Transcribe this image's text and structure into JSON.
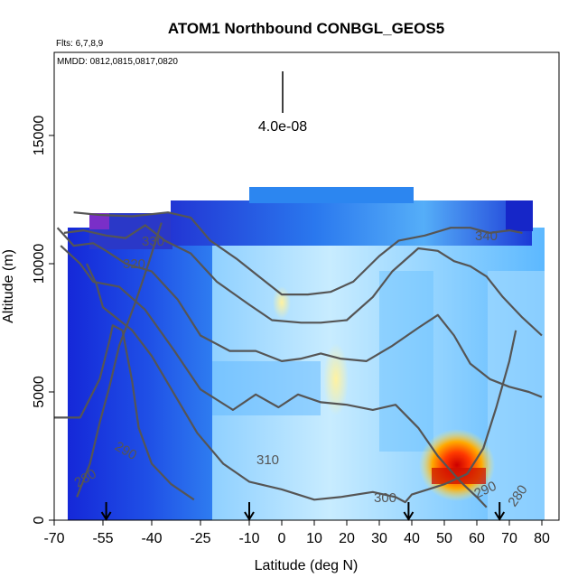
{
  "chart_data": {
    "type": "heatmap",
    "title": "ATOM1 Northbound CONBGL_GEOS5",
    "flights_label": "Flts: 6,7,8,9",
    "dates_label": "MMDD: 0812,0815,0817,0820",
    "xlabel": "Latitude (deg N)",
    "ylabel": "Altitude (m)",
    "xlim": [
      -70,
      80
    ],
    "ylim": [
      0,
      17000
    ],
    "x_ticks": [
      -70,
      -55,
      -40,
      -25,
      -10,
      0,
      10,
      20,
      30,
      40,
      50,
      60,
      70,
      80
    ],
    "x_tick_labels": [
      "-70",
      "-55",
      "-40",
      "-25",
      "-10",
      "0",
      "10",
      "20",
      "30",
      "40",
      "50",
      "60",
      "70",
      "80"
    ],
    "y_ticks": [
      0,
      5000,
      10000,
      15000
    ],
    "y_tick_labels": [
      "0",
      "5000",
      "10000",
      "15000"
    ],
    "scale_label": "4.0e-08",
    "contour_labels": [
      "330",
      "320",
      "340",
      "310",
      "300",
      "290",
      "280",
      "290",
      "280"
    ],
    "arrow_latitudes": [
      -54,
      -10,
      39,
      67
    ],
    "theta_contours": [
      {
        "level": 280,
        "points": [
          [
            -63,
            900
          ],
          [
            -59,
            2200
          ],
          [
            -56,
            3800
          ],
          [
            -53,
            5200
          ],
          [
            -50,
            6800
          ],
          [
            -45,
            8500
          ],
          [
            -41,
            10000
          ],
          [
            -37,
            11600
          ]
        ]
      },
      {
        "level": 290,
        "points": [
          [
            -70,
            4000
          ],
          [
            -62,
            4000
          ],
          [
            -56,
            5500
          ],
          [
            -53,
            7000
          ],
          [
            -52,
            7600
          ],
          [
            -49,
            7400
          ],
          [
            -46,
            5400
          ],
          [
            -44,
            3600
          ],
          [
            -40,
            2200
          ],
          [
            -34,
            1400
          ],
          [
            -27,
            800
          ]
        ]
      },
      {
        "level": 300,
        "points": [
          [
            -60,
            10000
          ],
          [
            -57,
            9200
          ],
          [
            -55,
            8300
          ],
          [
            -46,
            7400
          ],
          [
            -40,
            6400
          ],
          [
            -33,
            4900
          ],
          [
            -26,
            3400
          ],
          [
            -18,
            2200
          ],
          [
            -10,
            1500
          ],
          [
            0,
            1200
          ],
          [
            10,
            800
          ],
          [
            18,
            900
          ],
          [
            28,
            1100
          ],
          [
            35,
            900
          ],
          [
            38,
            700
          ],
          [
            40,
            1000
          ],
          [
            45,
            1200
          ],
          [
            50,
            1400
          ],
          [
            57,
            1800
          ],
          [
            62,
            2800
          ],
          [
            66,
            4400
          ],
          [
            70,
            6200
          ],
          [
            72,
            7400
          ]
        ]
      },
      {
        "level": 310,
        "points": [
          [
            -68,
            10700
          ],
          [
            -62,
            10000
          ],
          [
            -58,
            9300
          ],
          [
            -50,
            9100
          ],
          [
            -42,
            8200
          ],
          [
            -33,
            6600
          ],
          [
            -25,
            5100
          ],
          [
            -15,
            4300
          ],
          [
            -8,
            4900
          ],
          [
            -1,
            4400
          ],
          [
            5,
            4900
          ],
          [
            12,
            4600
          ],
          [
            20,
            4500
          ],
          [
            28,
            4300
          ],
          [
            35,
            4500
          ],
          [
            42,
            3600
          ],
          [
            48,
            2500
          ],
          [
            55,
            1500
          ],
          [
            60,
            900
          ],
          [
            63,
            500
          ]
        ]
      },
      {
        "level": 320,
        "points": [
          [
            -69,
            11400
          ],
          [
            -64,
            10700
          ],
          [
            -58,
            10800
          ],
          [
            -54,
            10500
          ],
          [
            -48,
            10000
          ],
          [
            -40,
            9700
          ],
          [
            -32,
            8600
          ],
          [
            -25,
            7200
          ],
          [
            -16,
            6600
          ],
          [
            -8,
            6600
          ],
          [
            0,
            6200
          ],
          [
            6,
            6300
          ],
          [
            12,
            6500
          ],
          [
            18,
            6300
          ],
          [
            26,
            6200
          ],
          [
            34,
            6800
          ],
          [
            42,
            7500
          ],
          [
            48,
            8000
          ],
          [
            53,
            7200
          ],
          [
            58,
            6100
          ],
          [
            64,
            5500
          ],
          [
            70,
            5200
          ],
          [
            76,
            5000
          ],
          [
            80,
            4800
          ]
        ]
      },
      {
        "level": 330,
        "points": [
          [
            -67,
            11200
          ],
          [
            -61,
            11300
          ],
          [
            -54,
            11100
          ],
          [
            -48,
            11000
          ],
          [
            -42,
            11500
          ],
          [
            -36,
            10900
          ],
          [
            -28,
            10400
          ],
          [
            -20,
            9300
          ],
          [
            -10,
            8400
          ],
          [
            -3,
            7800
          ],
          [
            6,
            7700
          ],
          [
            12,
            7700
          ],
          [
            20,
            7800
          ],
          [
            28,
            8700
          ],
          [
            34,
            9700
          ],
          [
            42,
            10600
          ],
          [
            48,
            10500
          ],
          [
            53,
            10100
          ],
          [
            58,
            9900
          ],
          [
            63,
            9500
          ],
          [
            68,
            8700
          ],
          [
            74,
            7900
          ],
          [
            80,
            7200
          ]
        ]
      },
      {
        "level": 340,
        "points": [
          [
            -64,
            12000
          ],
          [
            -56,
            11900
          ],
          [
            -46,
            11850
          ],
          [
            -35,
            12000
          ],
          [
            -28,
            11800
          ],
          [
            -22,
            10900
          ],
          [
            -14,
            10200
          ],
          [
            -7,
            9500
          ],
          [
            0,
            8800
          ],
          [
            8,
            8800
          ],
          [
            15,
            8900
          ],
          [
            22,
            9300
          ],
          [
            30,
            10300
          ],
          [
            36,
            10900
          ],
          [
            44,
            11100
          ],
          [
            52,
            11400
          ],
          [
            58,
            11400
          ],
          [
            64,
            11200
          ],
          [
            70,
            11300
          ],
          [
            74,
            11200
          ]
        ]
      }
    ]
  }
}
